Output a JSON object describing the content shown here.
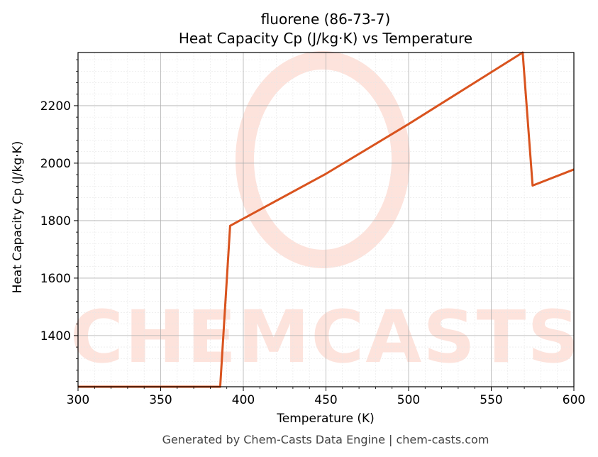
{
  "chart_data": {
    "type": "line",
    "title": "fluorene (86-73-7)",
    "subtitle": "Heat Capacity Cp (J/kg·K) vs Temperature",
    "xlabel": "Temperature (K)",
    "ylabel": "Heat Capacity Cp (J/kg·K)",
    "xlim": [
      300,
      600
    ],
    "ylim": [
      1222,
      2385
    ],
    "x_ticks": [
      300,
      350,
      400,
      450,
      500,
      550,
      600
    ],
    "y_ticks": [
      1400,
      1600,
      1800,
      2000,
      2200
    ],
    "grid": true,
    "line_color": "#d9531e",
    "series": [
      {
        "x": [
          300,
          386,
          392,
          450,
          500,
          569,
          575,
          600
        ],
        "y": [
          1222,
          1222,
          1782,
          1963,
          2136,
          2385,
          1922,
          1978
        ]
      }
    ]
  },
  "watermark": {
    "text": "CHEMCASTS",
    "color": "#fde3dc"
  },
  "footer": "Generated by Chem-Casts Data Engine | chem-casts.com"
}
